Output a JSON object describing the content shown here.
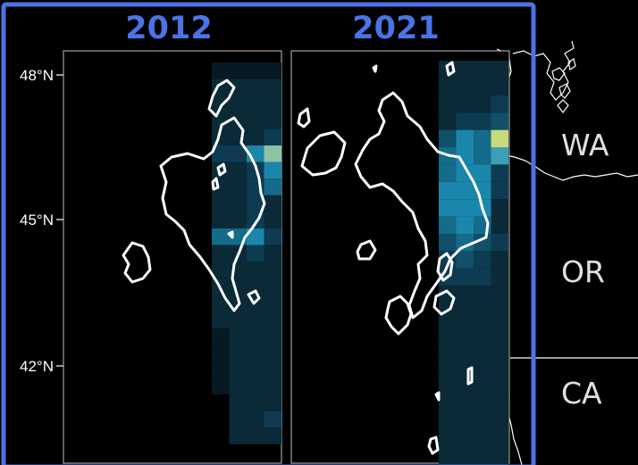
{
  "panels": [
    {
      "year": "2012"
    },
    {
      "year": "2021"
    }
  ],
  "latitude_labels": [
    "48°N",
    "45°N",
    "42°N"
  ],
  "state_labels": [
    "WA",
    "OR",
    "CA"
  ],
  "colors": {
    "background": "#000000",
    "frame": "#4a74e6",
    "year_title": "#4a74e6",
    "contour": "#ffffff",
    "coastline": "#ffffff",
    "state_label": "#e0e0e0"
  }
}
